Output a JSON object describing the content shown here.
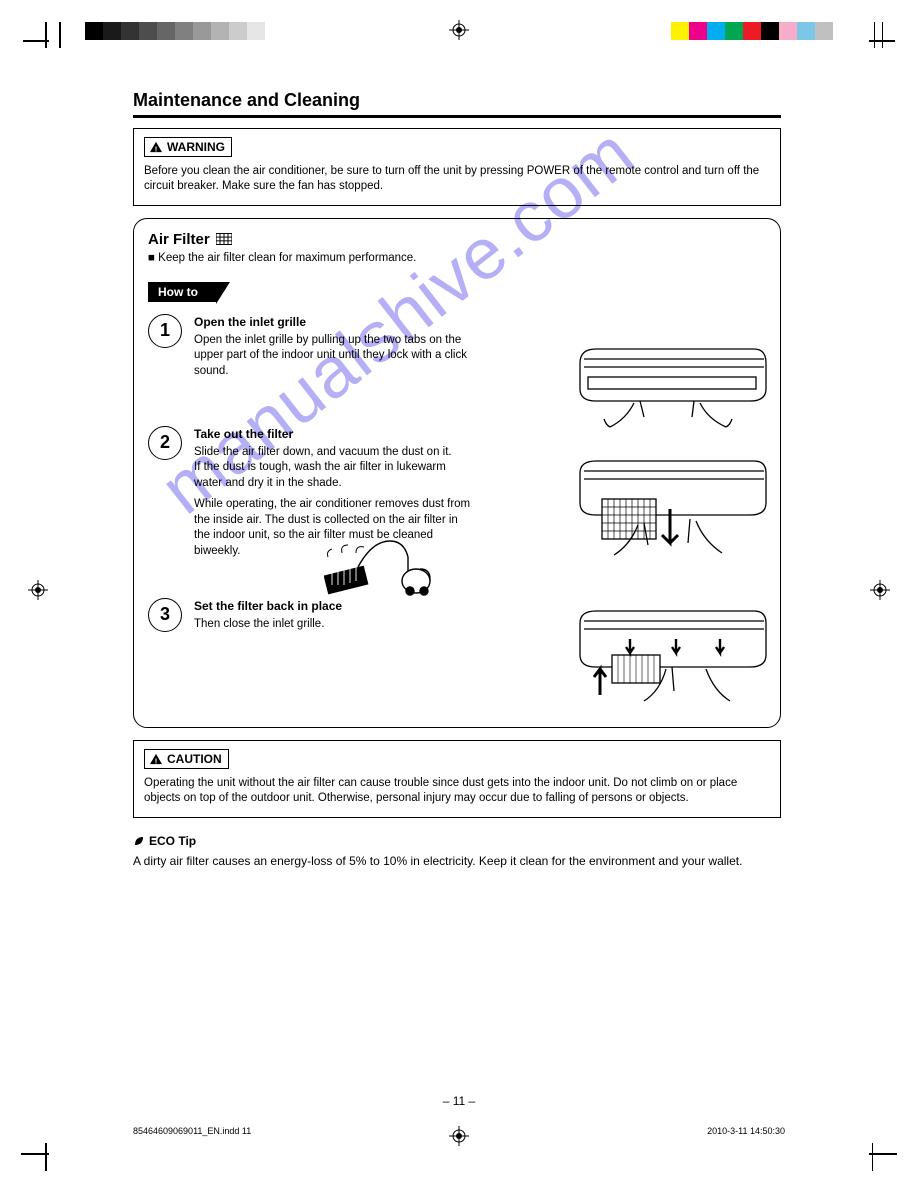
{
  "printmarks": {
    "grayscale": [
      "#000000",
      "#1a1a1a",
      "#333333",
      "#4d4d4d",
      "#666666",
      "#808080",
      "#999999",
      "#b3b3b3",
      "#cccccc",
      "#e6e6e6",
      "#ffffff"
    ],
    "colors": [
      "#fff200",
      "#ec008c",
      "#00aeef",
      "#00a651",
      "#ed1c24",
      "#000000",
      "#f7adc9",
      "#7ac7e6",
      "#c0c0c0"
    ]
  },
  "title": "Maintenance and Cleaning",
  "warning": {
    "label": "WARNING",
    "text": "Before you clean the air conditioner, be sure to turn off the unit by pressing POWER of the remote control and turn off the circuit breaker. Make sure the fan has stopped."
  },
  "filterBox": {
    "title": "Air Filter",
    "keepClean": "Keep the air filter clean for maximum performance.",
    "how": "How to",
    "steps": [
      {
        "num": "1",
        "lead": "Open the inlet grille",
        "body": "Open the inlet grille by pulling up the two tabs on the upper part of the indoor unit until they lock with a click sound."
      },
      {
        "num": "2",
        "lead": "Take out the filter",
        "body": "Slide the air filter down, and vacuum the dust on it.\nIf the dust is tough, wash the air filter in lukewarm water and dry it in the shade.",
        "note": "While operating, the air conditioner removes dust from the inside air. The dust is collected on the air filter in the indoor unit, so the air filter must be cleaned biweekly."
      },
      {
        "num": "3",
        "lead": "Set the filter back in place",
        "body": "Then close the inlet grille."
      }
    ]
  },
  "caution": {
    "label": "CAUTION",
    "text": "Operating the unit without the air filter can cause trouble since dust gets into the indoor unit. Do not climb on or place objects on top of the outdoor unit. Otherwise, personal injury may occur due to falling of persons or objects."
  },
  "ecoTip": {
    "label": "ECO Tip",
    "text": "A dirty air filter causes an energy-loss of 5% to 10% in electricity. Keep it clean for the environment and your wallet."
  },
  "pageNum": "– 11 –",
  "footer": {
    "file": "85464609069011_EN.indd   11",
    "time": "2010-3-11   14:50:30"
  },
  "watermark": "manualshive.com"
}
